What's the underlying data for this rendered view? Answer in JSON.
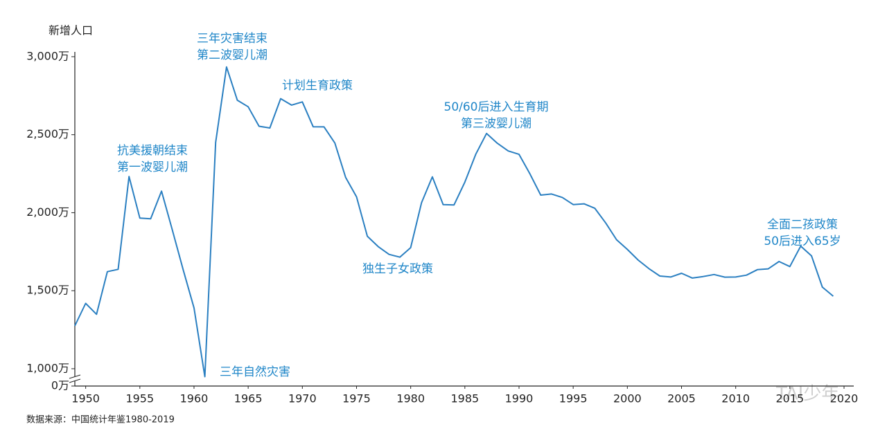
{
  "chart_data": {
    "type": "line",
    "y_axis_title": "新增人口",
    "source": "数据来源：中国统计年鉴1980-2019",
    "watermark": "TAI少年",
    "color": "#2a7fc1",
    "axis_break": true,
    "x": [
      1949,
      1950,
      1951,
      1952,
      1953,
      1954,
      1955,
      1956,
      1957,
      1958,
      1959,
      1960,
      1961,
      1962,
      1963,
      1964,
      1965,
      1966,
      1967,
      1968,
      1969,
      1970,
      1971,
      1972,
      1973,
      1974,
      1975,
      1976,
      1977,
      1978,
      1979,
      1980,
      1981,
      1982,
      1983,
      1984,
      1985,
      1986,
      1987,
      1988,
      1989,
      1990,
      1991,
      1992,
      1993,
      1994,
      1995,
      1996,
      1997,
      1998,
      1999,
      2000,
      2001,
      2002,
      2003,
      2004,
      2005,
      2006,
      2007,
      2008,
      2009,
      2010,
      2011,
      2012,
      2013,
      2014,
      2015,
      2016,
      2017,
      2018,
      2019
    ],
    "values": [
      1275,
      1419,
      1349,
      1622,
      1637,
      2232,
      1965,
      1961,
      2138,
      1889,
      1635,
      1389,
      949,
      2451,
      2934,
      2721,
      2679,
      2554,
      2543,
      2731,
      2690,
      2710,
      2551,
      2550,
      2447,
      2226,
      2102,
      1849,
      1783,
      1733,
      1715,
      1776,
      2064,
      2230,
      2052,
      2050,
      2196,
      2374,
      2508,
      2445,
      2396,
      2374,
      2250,
      2113,
      2120,
      2098,
      2052,
      2057,
      2028,
      1934,
      1827,
      1765,
      1696,
      1641,
      1594,
      1588,
      1612,
      1581,
      1591,
      1604,
      1587,
      1588,
      1600,
      1635,
      1640,
      1687,
      1655,
      1786,
      1723,
      1523,
      1465
    ],
    "xlim": [
      1949,
      2020
    ],
    "xticks": [
      1950,
      1955,
      1960,
      1965,
      1970,
      1975,
      1980,
      1985,
      1990,
      1995,
      2000,
      2005,
      2010,
      2015,
      2020
    ],
    "ylim": [
      889,
      3186
    ],
    "yticks": [
      {
        "value": 0,
        "label": "0万"
      },
      {
        "value": 1000,
        "label": "1,000万"
      },
      {
        "value": 1500,
        "label": "1,500万"
      },
      {
        "value": 2000,
        "label": "2,000万"
      },
      {
        "value": 2500,
        "label": "2,500万"
      },
      {
        "value": 3000,
        "label": "3,000万"
      }
    ],
    "annotations": [
      {
        "lines": [
          "抗美援朝结束",
          "第一波婴儿潮"
        ]
      },
      {
        "lines": [
          "三年灾害结束",
          "第二波婴儿潮"
        ]
      },
      {
        "lines": [
          "计划生育政策"
        ]
      },
      {
        "lines": [
          "50/60后进入生育期",
          "第三波婴儿潮"
        ]
      },
      {
        "lines": [
          "独生子女政策"
        ]
      },
      {
        "lines": [
          "三年自然灾害"
        ]
      },
      {
        "lines": [
          "全面二孩政策",
          "50后进入65岁"
        ]
      }
    ]
  }
}
